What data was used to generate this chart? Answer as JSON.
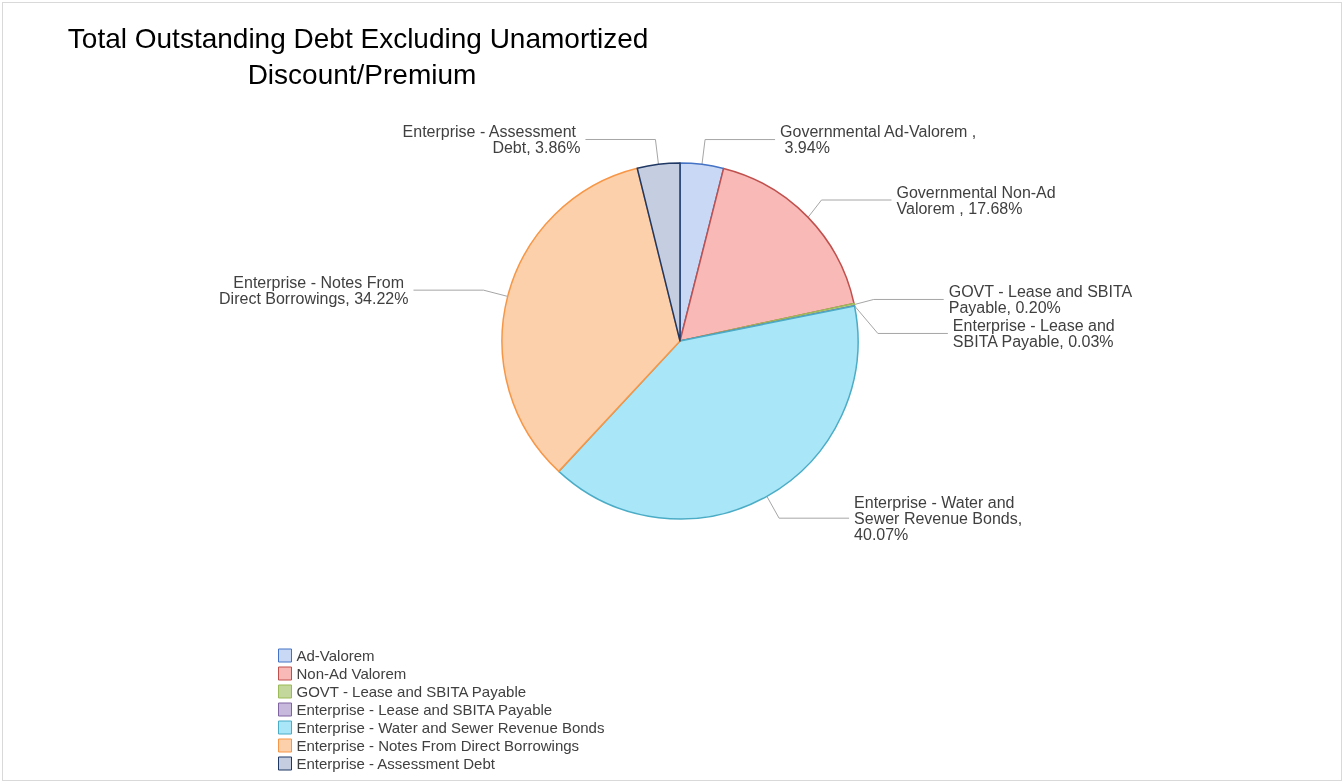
{
  "chart_data": {
    "type": "pie",
    "title": "Total Outstanding Debt Excluding Unamortized Discount/Premium",
    "categories": [
      "Ad-Valorem",
      "Non-Ad Valorem",
      "GOVT - Lease and SBITA Payable",
      "Enterprise - Lease and SBITA Payable",
      "Enterprise - Water and Sewer Revenue Bonds",
      "Enterprise - Notes From Direct Borrowings",
      "Enterprise - Assessment Debt"
    ],
    "values": [
      3.94,
      17.68,
      0.2,
      0.03,
      40.07,
      34.22,
      3.86
    ],
    "colors": [
      "#c9d9f5",
      "#f9b9b7",
      "#c3d69b",
      "#c7b9dc",
      "#a9e6f7",
      "#fcd0aa",
      "#c5cde0"
    ],
    "value_labels": [
      "Governmental Ad-Valorem , 3.94%",
      "Governmental Non-Ad Valorem , 17.68%",
      "GOVT - Lease and SBITA Payable, 0.20%",
      "Enterprise - Lease and SBITA Payable, 0.03%",
      "Enterprise - Water and Sewer Revenue Bonds, 40.07%",
      "Enterprise - Notes From Direct Borrowings, 34.22%",
      "Enterprise - Assessment Debt, 3.86%"
    ],
    "legend": "bottom left"
  }
}
